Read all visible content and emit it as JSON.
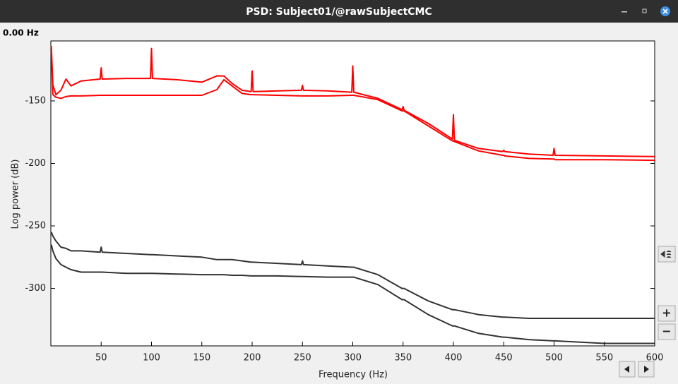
{
  "window": {
    "title": "PSD: Subject01/@rawSubjectCMC",
    "cursor_label": "0.00 Hz",
    "zoom_in": "+",
    "zoom_out": "−"
  },
  "chart_data": {
    "type": "line",
    "x_label": "Frequency (Hz)",
    "y_label": "Log power   (dB)",
    "xlim": [
      0,
      600
    ],
    "ylim": [
      -346,
      -102
    ],
    "xticks": [
      50,
      100,
      150,
      200,
      250,
      300,
      350,
      400,
      450,
      500,
      550,
      600
    ],
    "yticks": [
      -300,
      -250,
      -200,
      -150
    ],
    "x": [
      0.5,
      2,
      5,
      10,
      15,
      20,
      30,
      49,
      50,
      51,
      75,
      99,
      100,
      101,
      125,
      150,
      165,
      172,
      180,
      190,
      199,
      200,
      201,
      225,
      249,
      250,
      251,
      275,
      299,
      300,
      301,
      325,
      349,
      350,
      351,
      375,
      399,
      400,
      401,
      425,
      449,
      450,
      451,
      475,
      499,
      500,
      501,
      550,
      600
    ],
    "series": [
      {
        "color": "#ff0000",
        "values": [
          -106,
          -137,
          -145,
          -141.5,
          -132.5,
          -138,
          -134,
          -132.5,
          -123.5,
          -132.5,
          -132,
          -132,
          -108,
          -132,
          -133,
          -135,
          -130,
          -130,
          -136,
          -141.5,
          -142.5,
          -126,
          -142.5,
          -142,
          -141.5,
          -137.5,
          -141.5,
          -142,
          -143,
          -122,
          -143,
          -148,
          -157,
          -154.5,
          -157.5,
          -168,
          -180.5,
          -161,
          -181.5,
          -188,
          -190.5,
          -189.5,
          -190.5,
          -192.5,
          -193.5,
          -188,
          -193.5,
          -194,
          -194.5
        ]
      },
      {
        "color": "#ff0000",
        "values": [
          -110,
          -145,
          -147,
          -148,
          -146.5,
          -146,
          -146,
          -145.5,
          -145.5,
          -145.5,
          -145.5,
          -145.5,
          -145.5,
          -145.5,
          -145.5,
          -145.5,
          -141,
          -133,
          -138,
          -144,
          -145,
          -145,
          -145,
          -145.5,
          -146,
          -146,
          -146,
          -146,
          -145.5,
          -145.5,
          -145.5,
          -149,
          -158,
          -158,
          -158,
          -170,
          -182,
          -182,
          -182.5,
          -190,
          -193.5,
          -193.5,
          -194,
          -196,
          -196.5,
          -196.5,
          -197,
          -197,
          -197.5
        ]
      },
      {
        "color": "#333333",
        "values": [
          -255,
          -258,
          -262,
          -267,
          -268,
          -270,
          -270,
          -271,
          -267,
          -271,
          -272,
          -273,
          -273,
          -273,
          -274,
          -275,
          -277,
          -277,
          -277,
          -278,
          -279,
          -279,
          -279,
          -280,
          -281,
          -278,
          -281,
          -282,
          -283,
          -283,
          -283,
          -289,
          -300,
          -300,
          -300,
          -310,
          -317,
          -317,
          -317,
          -321,
          -323,
          -323,
          -323,
          -324,
          -324,
          -324,
          -324,
          -324,
          -324
        ]
      },
      {
        "color": "#333333",
        "values": [
          -265,
          -270,
          -276,
          -281,
          -283,
          -285,
          -287,
          -287,
          -287,
          -287,
          -288,
          -288,
          -288,
          -288,
          -288.5,
          -289,
          -289,
          -289,
          -289.5,
          -289.5,
          -290,
          -290,
          -290,
          -290,
          -290.5,
          -290.5,
          -290.5,
          -291,
          -291,
          -291,
          -291,
          -297,
          -309,
          -309,
          -309,
          -321,
          -330,
          -330,
          -330,
          -336,
          -339,
          -339,
          -339,
          -341,
          -342,
          -342,
          -342,
          -344,
          -344
        ]
      }
    ]
  }
}
